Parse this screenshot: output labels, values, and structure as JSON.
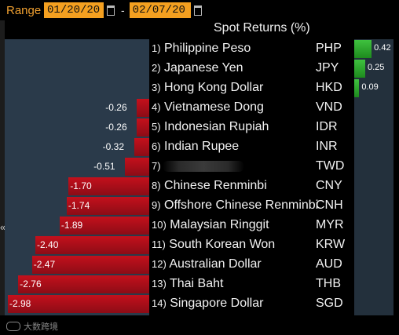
{
  "header": {
    "range_label": "Range",
    "start_date": "01/20/20",
    "end_date": "02/07/20",
    "separator": "-"
  },
  "title": "Spot Returns (%)",
  "watermark": "大数跨境",
  "chart_data": {
    "type": "bar",
    "title": "Spot Returns (%)",
    "orientation": "horizontal",
    "categories": [
      "Philippine Peso",
      "Japanese Yen",
      "Hong Kong Dollar",
      "Vietnamese Dong",
      "Indonesian Rupiah",
      "Indian Rupee",
      "",
      "Chinese Renminbi",
      "Offshore Chinese Renminbi",
      "Malaysian Ringgit",
      "South Korean Won",
      "Australian Dollar",
      "Thai Baht",
      "Singapore Dollar"
    ],
    "codes": [
      "PHP",
      "JPY",
      "HKD",
      "VND",
      "IDR",
      "INR",
      "TWD",
      "CNY",
      "CNH",
      "MYR",
      "KRW",
      "AUD",
      "THB",
      "SGD"
    ],
    "values": [
      0.42,
      0.25,
      0.09,
      -0.26,
      -0.26,
      -0.32,
      -0.51,
      -1.7,
      -1.74,
      -1.89,
      -2.4,
      -2.47,
      -2.76,
      -2.98
    ],
    "value_labels": [
      "0.42",
      "0.25",
      "0.09",
      "-0.26",
      "-0.26",
      "-0.32",
      "-0.51",
      "-1.70",
      "-1.74",
      "-1.89",
      "-2.40",
      "-2.47",
      "-2.76",
      "-2.98"
    ],
    "colors": {
      "positive": "#2ea82e",
      "negative": "#b0101a"
    }
  }
}
